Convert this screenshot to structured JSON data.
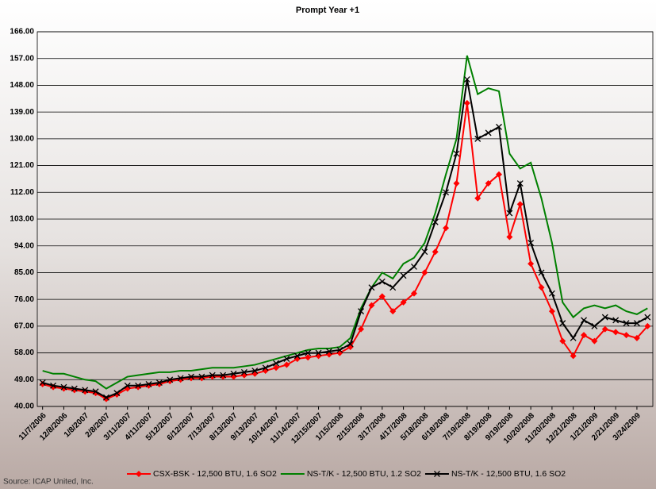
{
  "chart_data": {
    "type": "line",
    "title": "Prompt Year +1",
    "categories": [
      "11/7/2006",
      null,
      "12/8/2006",
      null,
      "1/8/2007",
      null,
      "2/8/2007",
      null,
      "3/11/2007",
      null,
      "4/11/2007",
      null,
      "5/12/2007",
      null,
      "6/12/2007",
      null,
      "7/13/2007",
      null,
      "8/13/2007",
      null,
      "9/13/2007",
      null,
      "10/14/2007",
      null,
      "11/14/2007",
      null,
      "12/15/2007",
      null,
      "1/15/2008",
      null,
      "2/15/2008",
      null,
      "3/17/2008",
      null,
      "4/17/2008",
      null,
      "5/18/2008",
      null,
      "6/18/2008",
      null,
      "7/19/2008",
      null,
      "8/19/2008",
      null,
      "9/19/2008",
      null,
      "10/20/2008",
      null,
      "11/20/2008",
      null,
      "12/21/2008",
      null,
      "1/21/2009",
      null,
      "2/21/2009",
      null,
      "3/24/2009",
      null
    ],
    "series": [
      {
        "name": "CSX-BSK - 12,500 BTU, 1.6 SO2",
        "color": "#ff0000",
        "marker": "diamond",
        "values": [
          47.5,
          46.5,
          46,
          45.5,
          45,
          44.5,
          42.5,
          44,
          46,
          46.5,
          47,
          47.5,
          48.5,
          49,
          49.5,
          49.5,
          50,
          50,
          50,
          50.5,
          51,
          52,
          53,
          54,
          56,
          56.5,
          57,
          57.5,
          58,
          60,
          66,
          74,
          77,
          72,
          75,
          78,
          85,
          92,
          100,
          115,
          142,
          110,
          115,
          118,
          97,
          108,
          88,
          80,
          72,
          62,
          57,
          64,
          62,
          66,
          65,
          64,
          63,
          67
        ]
      },
      {
        "name": "NS-T/K - 12,500 BTU, 1.2 SO2",
        "color": "#008000",
        "marker": "none",
        "values": [
          52,
          51,
          51,
          50,
          49,
          48.5,
          46,
          48,
          50,
          50.5,
          51,
          51.5,
          51.5,
          52,
          52,
          52.5,
          53,
          53,
          53,
          53.5,
          54,
          55,
          56,
          57,
          58,
          59,
          59.5,
          59.5,
          60,
          63,
          73,
          80,
          85,
          83,
          88,
          90,
          95,
          105,
          118,
          130,
          158,
          145,
          147,
          146,
          125,
          120,
          122,
          110,
          95,
          75,
          70,
          73,
          74,
          73,
          74,
          72,
          71,
          73
        ]
      },
      {
        "name": "NS-T/K - 12,500 BTU, 1.6 SO2",
        "color": "#000000",
        "marker": "x",
        "values": [
          48,
          47,
          46.5,
          46,
          45.5,
          45,
          43,
          44.5,
          47,
          47,
          47.5,
          48,
          49,
          49.5,
          50,
          50,
          50.5,
          50.5,
          51,
          51.5,
          52,
          53,
          54.5,
          56,
          57,
          58,
          58,
          58.5,
          59,
          61,
          72,
          80,
          82,
          80,
          84,
          87,
          92,
          102,
          112,
          125,
          150,
          130,
          132,
          134,
          105,
          115,
          95,
          85,
          78,
          68,
          63,
          69,
          67,
          70,
          69,
          68,
          68,
          70
        ]
      }
    ],
    "ylim": [
      40,
      166
    ],
    "yticks": [
      {
        "value": 40,
        "label": "40.00"
      },
      {
        "value": 49,
        "label": "49.00"
      },
      {
        "value": 58,
        "label": "58.00"
      },
      {
        "value": 67,
        "label": "67.00"
      },
      {
        "value": 76,
        "label": "76.00"
      },
      {
        "value": 85,
        "label": "85.00"
      },
      {
        "value": 94,
        "label": "94.00"
      },
      {
        "value": 103,
        "label": "103.00"
      },
      {
        "value": 112,
        "label": "112.00"
      },
      {
        "value": 121,
        "label": "121.00"
      },
      {
        "value": 130,
        "label": "130.00"
      },
      {
        "value": 139,
        "label": "139.00"
      },
      {
        "value": 148,
        "label": "148.00"
      },
      {
        "value": 157,
        "label": "157.00"
      },
      {
        "value": 166,
        "label": "166.00"
      }
    ],
    "grid": true,
    "legend": "bottom",
    "source": "Source:  ICAP United, Inc."
  }
}
